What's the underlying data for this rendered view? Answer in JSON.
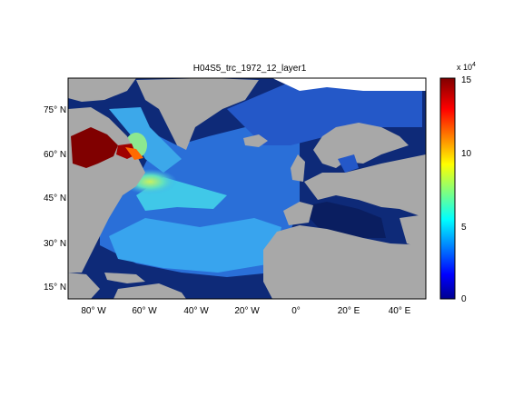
{
  "map": {
    "title": "H04S5_trc_1972_12_layer1",
    "lat_ticks": [
      "75° N",
      "60° N",
      "45° N",
      "30° N",
      "15° N"
    ],
    "lon_ticks": [
      "80° W",
      "60° W",
      "40° W",
      "20° W",
      "0°",
      "20° E",
      "40° E"
    ],
    "lon_range": [
      -90,
      50
    ],
    "lat_range": [
      10,
      85
    ],
    "colors": {
      "land": "#a8a8a8",
      "ocean_low": "#0e2a78",
      "missing": "#ffffff"
    }
  },
  "colorbar": {
    "exponent_base": "x 10",
    "exponent_power": "4",
    "ticks": [
      "15",
      "10",
      "5",
      "0"
    ],
    "range": [
      0,
      15
    ],
    "colormap": "jet"
  }
}
